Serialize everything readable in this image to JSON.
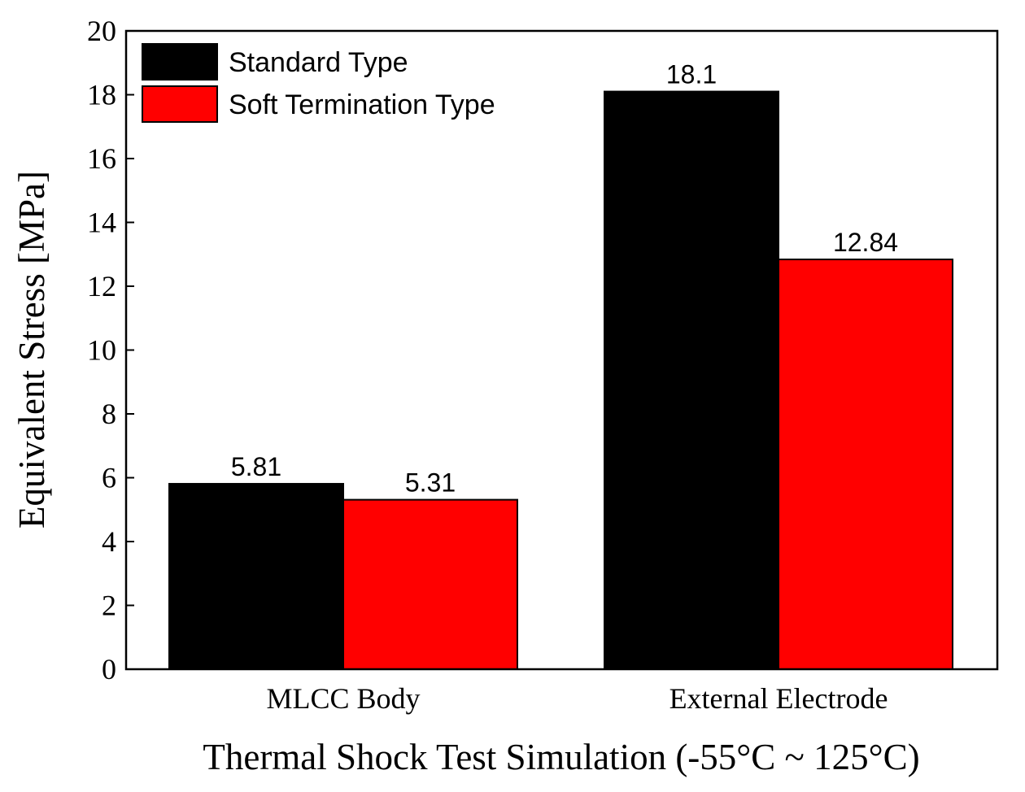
{
  "chart_data": {
    "type": "bar",
    "title": "",
    "categories": [
      "MLCC Body",
      "External Electrode"
    ],
    "series": [
      {
        "name": "Standard Type",
        "color": "#000000",
        "values": [
          5.81,
          18.1
        ],
        "labels": [
          "5.81",
          "18.1"
        ]
      },
      {
        "name": "Soft Termination Type",
        "color": "#ff0000",
        "values": [
          5.31,
          12.84
        ],
        "labels": [
          "5.31",
          "12.84"
        ]
      }
    ],
    "xlabel": "Thermal Shock Test Simulation (-55°C ~ 125°C)",
    "ylabel": "Equivalent Stress [MPa]",
    "ylim": [
      0,
      20
    ],
    "yticks": [
      0,
      2,
      4,
      6,
      8,
      10,
      12,
      14,
      16,
      18,
      20
    ],
    "ytick_labels": [
      "0",
      "2",
      "4",
      "6",
      "8",
      "10",
      "12",
      "14",
      "16",
      "18",
      "20"
    ],
    "legend_position": "top-left",
    "grid": false
  }
}
